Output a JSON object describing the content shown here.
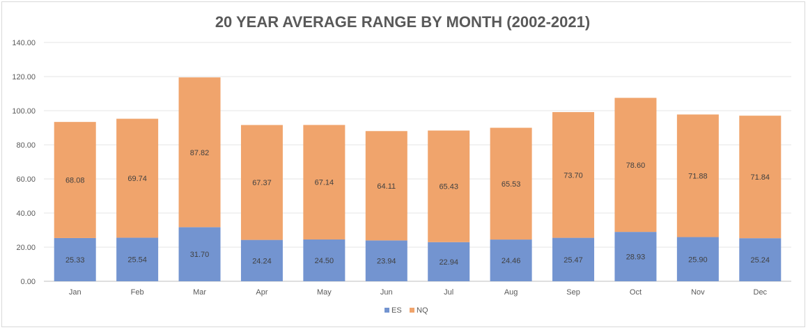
{
  "chart_data": {
    "type": "bar",
    "stacked": true,
    "title": "20 YEAR AVERAGE RANGE BY MONTH (2002-2021)",
    "categories": [
      "Jan",
      "Feb",
      "Mar",
      "Apr",
      "May",
      "Jun",
      "Jul",
      "Aug",
      "Sep",
      "Oct",
      "Nov",
      "Dec"
    ],
    "series": [
      {
        "name": "ES",
        "color": "#7394d0",
        "values": [
          25.33,
          25.54,
          31.7,
          24.24,
          24.5,
          23.94,
          22.94,
          24.46,
          25.47,
          28.93,
          25.9,
          25.24
        ]
      },
      {
        "name": "NQ",
        "color": "#f0a46c",
        "values": [
          68.08,
          69.74,
          87.82,
          67.37,
          67.14,
          64.11,
          65.43,
          65.53,
          73.7,
          78.6,
          71.88,
          71.84
        ]
      }
    ],
    "ylim": [
      0,
      140
    ],
    "yticks": [
      "0.00",
      "20.00",
      "40.00",
      "60.00",
      "80.00",
      "100.00",
      "120.00",
      "140.00"
    ],
    "grid": true,
    "legend_position": "bottom"
  }
}
